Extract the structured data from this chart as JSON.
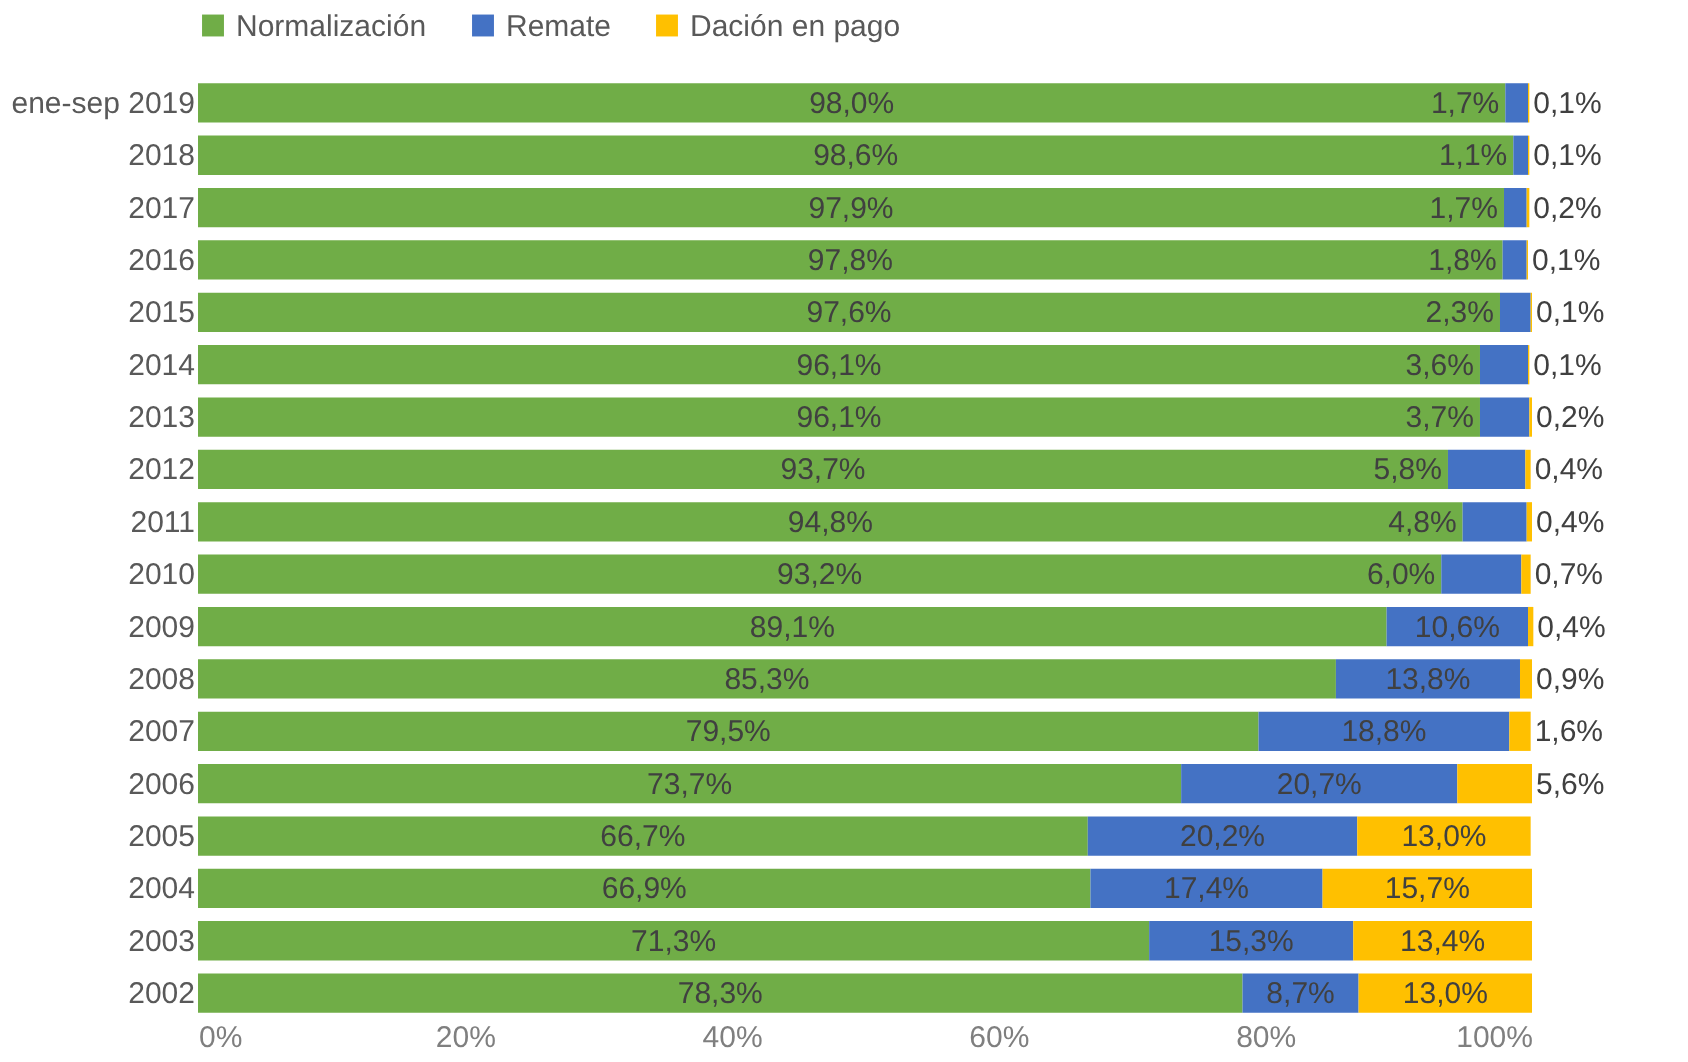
{
  "chart_data": {
    "type": "bar",
    "orientation": "horizontal",
    "stacked": true,
    "legend": "top",
    "grid": false,
    "categories": [
      "ene-sep 2019",
      "2018",
      "2017",
      "2016",
      "2015",
      "2014",
      "2013",
      "2012",
      "2011",
      "2010",
      "2009",
      "2008",
      "2007",
      "2006",
      "2005",
      "2004",
      "2003",
      "2002"
    ],
    "xlim": [
      0,
      100
    ],
    "xticks": [
      {
        "value": 0,
        "label": "0%"
      },
      {
        "value": 20,
        "label": "20%"
      },
      {
        "value": 40,
        "label": "40%"
      },
      {
        "value": 60,
        "label": "60%"
      },
      {
        "value": 80,
        "label": "80%"
      },
      {
        "value": 100,
        "label": "100%"
      }
    ],
    "series": [
      {
        "name": "Normalización",
        "color": "#70ad47",
        "values": [
          98.0,
          98.6,
          97.9,
          97.8,
          97.6,
          96.1,
          96.1,
          93.7,
          94.8,
          93.2,
          89.1,
          85.3,
          79.5,
          73.7,
          66.7,
          66.9,
          71.3,
          78.3
        ],
        "value_labels": [
          "98,0%",
          "98,6%",
          "97,9%",
          "97,8%",
          "97,6%",
          "96,1%",
          "96,1%",
          "93,7%",
          "94,8%",
          "93,2%",
          "89,1%",
          "85,3%",
          "79,5%",
          "73,7%",
          "66,7%",
          "66,9%",
          "71,3%",
          "78,3%"
        ]
      },
      {
        "name": "Remate",
        "color": "#4472c4",
        "values": [
          1.7,
          1.1,
          1.7,
          1.8,
          2.3,
          3.6,
          3.7,
          5.8,
          4.8,
          6.0,
          10.6,
          13.8,
          18.8,
          20.7,
          20.2,
          17.4,
          15.3,
          8.7
        ],
        "value_labels": [
          "1,7%",
          "1,1%",
          "1,7%",
          "1,8%",
          "2,3%",
          "3,6%",
          "3,7%",
          "5,8%",
          "4,8%",
          "6,0%",
          "10,6%",
          "13,8%",
          "18,8%",
          "20,7%",
          "20,2%",
          "17,4%",
          "15,3%",
          "8,7%"
        ]
      },
      {
        "name": "Dación en pago",
        "color": "#ffc000",
        "values": [
          0.1,
          0.1,
          0.2,
          0.1,
          0.1,
          0.1,
          0.2,
          0.4,
          0.4,
          0.7,
          0.4,
          0.9,
          1.6,
          5.6,
          13.0,
          15.7,
          13.4,
          13.0
        ],
        "value_labels": [
          "0,1%",
          "0,1%",
          "0,2%",
          "0,1%",
          "0,1%",
          "0,1%",
          "0,2%",
          "0,4%",
          "0,4%",
          "0,7%",
          "0,4%",
          "0,9%",
          "1,6%",
          "5,6%",
          "13,0%",
          "15,7%",
          "13,4%",
          "13,0%"
        ]
      }
    ]
  }
}
